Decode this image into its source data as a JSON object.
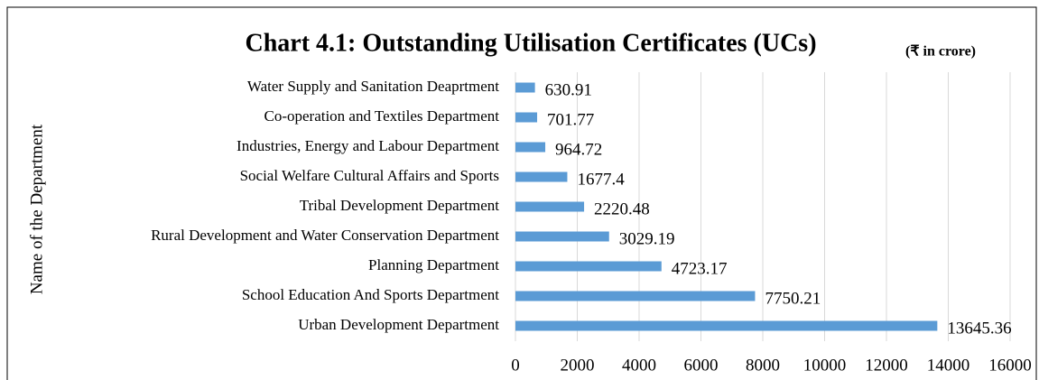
{
  "chart_data": {
    "type": "bar",
    "orientation": "horizontal",
    "title": "Chart 4.1: Outstanding Utilisation Certificates (UCs)",
    "subtitle": "(₹ in crore)",
    "y_label": "Name of the Department",
    "categories": [
      "Water Supply and Sanitation Deaprtment",
      "Co-operation and Textiles Department",
      "Industries, Energy and Labour Department",
      "Social Welfare Cultural Affairs and Sports",
      "Tribal Development Department",
      "Rural Development and Water Conservation Department",
      "Planning Department",
      "School Education And Sports Department",
      "Urban Development Department"
    ],
    "values": [
      630.91,
      701.77,
      964.72,
      1677.4,
      2220.48,
      3029.19,
      4723.17,
      7750.21,
      13645.36
    ],
    "color": "#5b9bd5",
    "xlim": [
      0,
      16000
    ],
    "xticks": [
      0,
      2000,
      4000,
      6000,
      8000,
      10000,
      12000,
      14000,
      16000
    ],
    "grid": true
  }
}
